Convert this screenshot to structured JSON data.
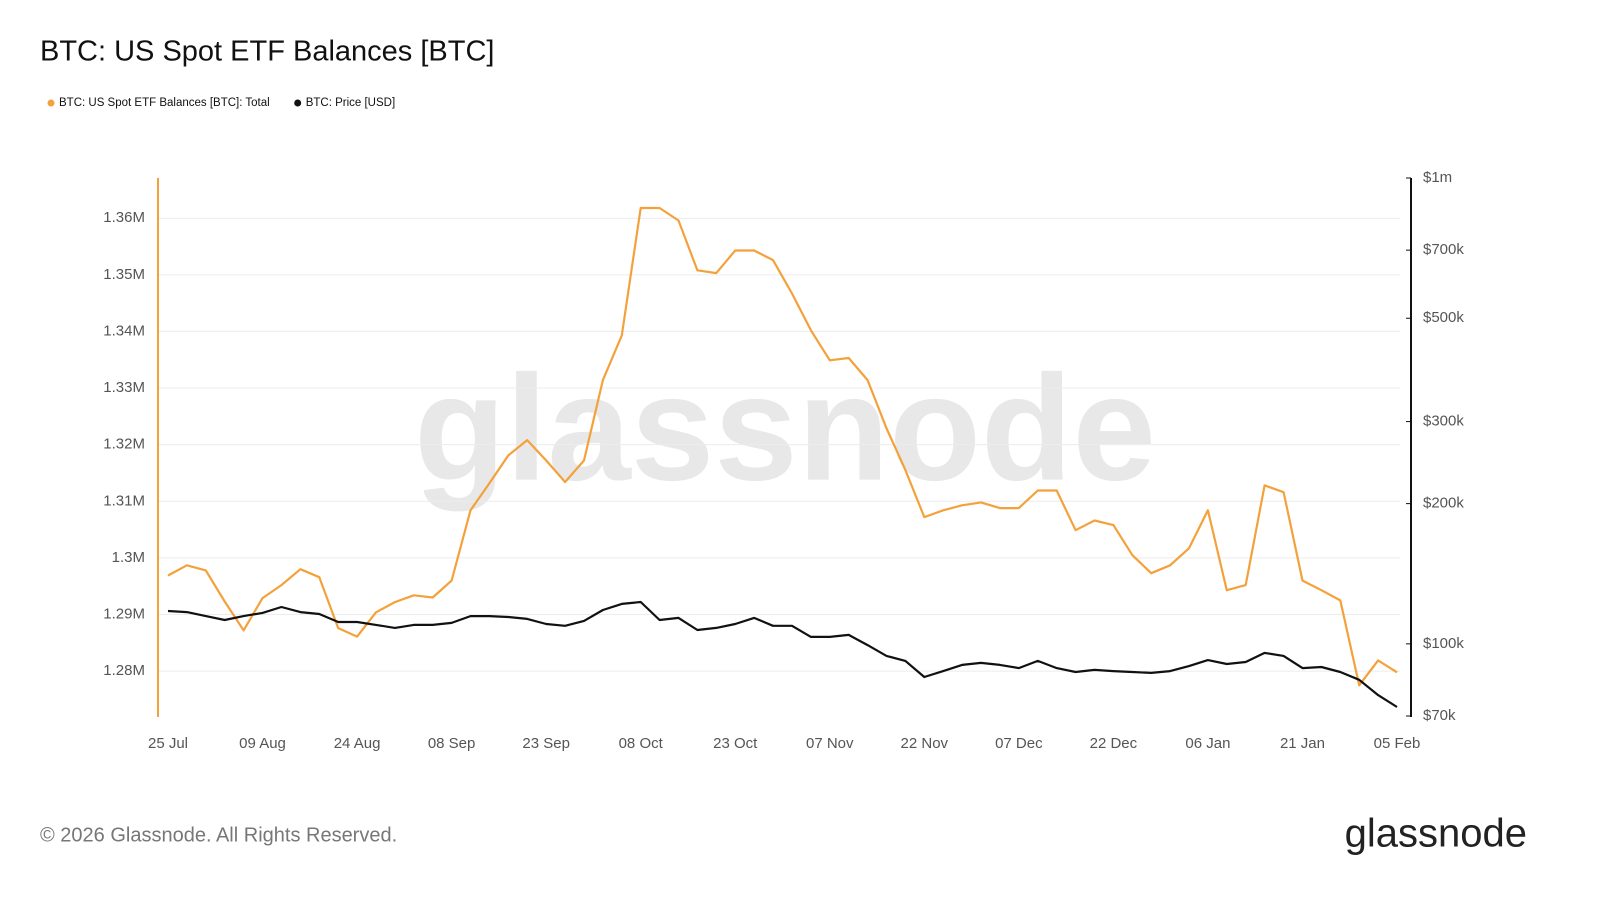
{
  "chart_data": {
    "type": "line",
    "title": "BTC: US Spot ETF Balances [BTC]",
    "watermark": "glassnode",
    "footer": "© 2026 Glassnode. All Rights Reserved.",
    "logo": "glassnode",
    "categories": [
      "25 Jul",
      null,
      null,
      null,
      null,
      "09 Aug",
      null,
      null,
      null,
      null,
      "24 Aug",
      null,
      null,
      null,
      null,
      "08 Sep",
      null,
      null,
      null,
      null,
      "23 Sep",
      null,
      null,
      null,
      null,
      "08 Oct",
      null,
      null,
      null,
      null,
      "23 Oct",
      null,
      null,
      null,
      null,
      "07 Nov",
      null,
      null,
      null,
      null,
      "22 Nov",
      null,
      null,
      null,
      null,
      "07 Dec",
      null,
      null,
      null,
      null,
      "22 Dec",
      null,
      null,
      null,
      null,
      "06 Jan",
      null,
      null,
      null,
      null,
      "21 Jan",
      null,
      null,
      null,
      null,
      "05 Feb"
    ],
    "series": [
      {
        "name": "BTC: US Spot ETF Balances [BTC]: Total",
        "color": "#f4a13b",
        "axis": "y",
        "values": [
          1296900,
          1298700,
          1297800,
          1292300,
          1287200,
          1292900,
          1295200,
          1298000,
          1296600,
          1287600,
          1286100,
          1290400,
          1292200,
          1293400,
          1293000,
          1296000,
          1308400,
          1313200,
          1318100,
          1320800,
          1317200,
          1313400,
          1317200,
          1331400,
          1339300,
          1361800,
          1361800,
          1359600,
          1350800,
          1350300,
          1354300,
          1354300,
          1352600,
          1346700,
          1340200,
          1334900,
          1335300,
          1331400,
          1322900,
          1315500,
          1307200,
          1308400,
          1309300,
          1309800,
          1308800,
          1308800,
          1311900,
          1311900,
          1304900,
          1306600,
          1305800,
          1300500,
          1297300,
          1298700,
          1301700,
          1308400,
          1294300,
          1295200,
          1312800,
          1311600,
          1296000,
          1294300,
          1292500,
          1277500,
          1281900,
          1279800
        ]
      },
      {
        "name": "BTC: Price [USD]",
        "color": "#111111",
        "axis": "y2",
        "values": [
          117600,
          117000,
          114700,
          112500,
          114700,
          116500,
          120000,
          117000,
          115900,
          111400,
          111400,
          109800,
          108200,
          109800,
          109800,
          110900,
          114700,
          114700,
          114200,
          113100,
          110300,
          109300,
          112000,
          118200,
          121800,
          123000,
          112500,
          113700,
          107100,
          108200,
          110300,
          113700,
          109300,
          109300,
          103500,
          103500,
          104500,
          99400,
          94200,
          91900,
          84900,
          87400,
          90100,
          91000,
          90100,
          88700,
          91900,
          88700,
          87000,
          87900,
          87400,
          87000,
          86600,
          87400,
          89600,
          92300,
          90500,
          91400,
          95600,
          94200,
          88700,
          89200,
          87000,
          83700,
          77600,
          73200
        ]
      }
    ],
    "ylim": [
      1271900,
      1367100
    ],
    "yticks": [
      {
        "value": 1280000,
        "label": "1.28M"
      },
      {
        "value": 1290000,
        "label": "1.29M"
      },
      {
        "value": 1300000,
        "label": "1.3M"
      },
      {
        "value": 1310000,
        "label": "1.31M"
      },
      {
        "value": 1320000,
        "label": "1.32M"
      },
      {
        "value": 1330000,
        "label": "1.33M"
      },
      {
        "value": 1340000,
        "label": "1.34M"
      },
      {
        "value": 1350000,
        "label": "1.35M"
      },
      {
        "value": 1360000,
        "label": "1.36M"
      }
    ],
    "y2lim": [
      70000,
      1000000
    ],
    "y2log": true,
    "y2ticks": [
      {
        "value": 70000,
        "label": "$70k"
      },
      {
        "value": 100000,
        "label": "$100k"
      },
      {
        "value": 200000,
        "label": "$200k"
      },
      {
        "value": 300000,
        "label": "$300k"
      },
      {
        "value": 500000,
        "label": "$500k"
      },
      {
        "value": 700000,
        "label": "$700k"
      },
      {
        "value": 1000000,
        "label": "$1m"
      }
    ],
    "grid": true
  }
}
